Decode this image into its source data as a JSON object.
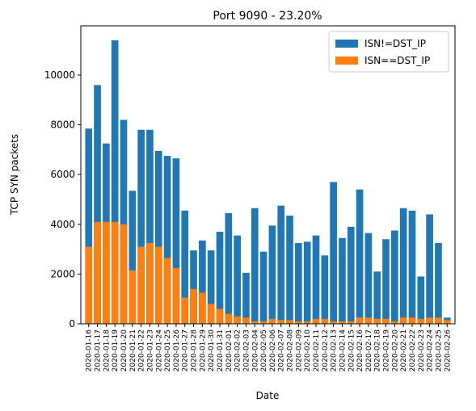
{
  "chart_data": {
    "type": "bar",
    "title": "Port 9090 - 23.20%",
    "x_label": "Date",
    "y_label": "TCP SYN packets",
    "categories": [
      "2020-01-16",
      "2020-01-17",
      "2020-01-18",
      "2020-01-19",
      "2020-01-20",
      "2020-01-21",
      "2020-01-22",
      "2020-01-23",
      "2020-01-24",
      "2020-01-25",
      "2020-01-26",
      "2020-01-27",
      "2020-01-28",
      "2020-01-29",
      "2020-01-30",
      "2020-01-31",
      "2020-02-01",
      "2020-02-02",
      "2020-02-03",
      "2020-02-04",
      "2020-02-05",
      "2020-02-06",
      "2020-02-07",
      "2020-02-08",
      "2020-02-09",
      "2020-02-10",
      "2020-02-11",
      "2020-02-12",
      "2020-02-13",
      "2020-02-14",
      "2020-02-15",
      "2020-02-16",
      "2020-02-17",
      "2020-02-18",
      "2020-02-19",
      "2020-02-20",
      "2020-02-21",
      "2020-02-22",
      "2020-02-23",
      "2020-02-24",
      "2020-02-25",
      "2020-02-26"
    ],
    "series": [
      {
        "name": "ISN!=DST_IP",
        "color": "#1f77b4",
        "values": [
          7850,
          9600,
          7250,
          11400,
          8200,
          5350,
          7800,
          7800,
          6950,
          6750,
          6650,
          4550,
          2950,
          3350,
          2950,
          3700,
          4450,
          3550,
          2050,
          4650,
          2900,
          3950,
          4750,
          4350,
          3250,
          3300,
          3550,
          2750,
          5700,
          3450,
          3900,
          5400,
          3650,
          2100,
          3400,
          3750,
          4650,
          4550,
          1900,
          4400,
          3250,
          250
        ]
      },
      {
        "name": "ISN==DST_IP",
        "color": "#ff7f0e",
        "values": [
          3100,
          4100,
          4100,
          4100,
          4000,
          2150,
          3100,
          3250,
          3100,
          2650,
          2250,
          1050,
          1400,
          1250,
          800,
          600,
          400,
          300,
          250,
          100,
          100,
          200,
          150,
          150,
          100,
          100,
          200,
          200,
          100,
          100,
          100,
          250,
          250,
          200,
          200,
          100,
          250,
          250,
          200,
          250,
          250,
          150
        ]
      }
    ],
    "ylim": [
      0,
      11980
    ],
    "yticks": [
      0,
      2000,
      4000,
      6000,
      8000,
      10000
    ],
    "legend": "upper right"
  }
}
